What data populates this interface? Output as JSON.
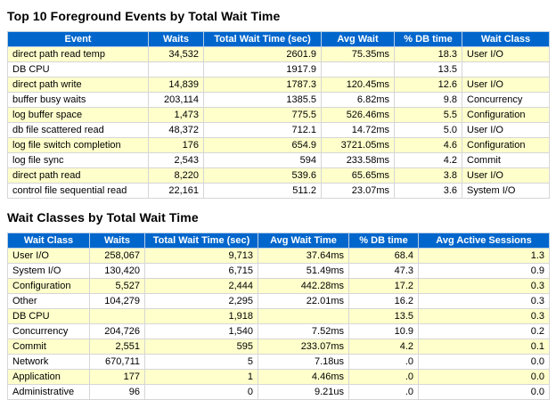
{
  "colors": {
    "header_bg": "#0066cc",
    "header_text": "#ffffff",
    "row_alt": "#ffffcc",
    "row_plain": "#ffffff"
  },
  "sections": [
    {
      "title": "Top 10 Foreground Events by Total Wait Time",
      "headers": [
        "Event",
        "Waits",
        "Total Wait Time (sec)",
        "Avg Wait",
        "% DB time",
        "Wait Class"
      ],
      "rows": [
        [
          "direct path read temp",
          "34,532",
          "2601.9",
          "75.35ms",
          "18.3",
          "User I/O"
        ],
        [
          "DB CPU",
          "",
          "1917.9",
          "",
          "13.5",
          ""
        ],
        [
          "direct path write",
          "14,839",
          "1787.3",
          "120.45ms",
          "12.6",
          "User I/O"
        ],
        [
          "buffer busy waits",
          "203,114",
          "1385.5",
          "6.82ms",
          "9.8",
          "Concurrency"
        ],
        [
          "log buffer space",
          "1,473",
          "775.5",
          "526.46ms",
          "5.5",
          "Configuration"
        ],
        [
          "db file scattered read",
          "48,372",
          "712.1",
          "14.72ms",
          "5.0",
          "User I/O"
        ],
        [
          "log file switch completion",
          "176",
          "654.9",
          "3721.05ms",
          "4.6",
          "Configuration"
        ],
        [
          "log file sync",
          "2,543",
          "594",
          "233.58ms",
          "4.2",
          "Commit"
        ],
        [
          "direct path read",
          "8,220",
          "539.6",
          "65.65ms",
          "3.8",
          "User I/O"
        ],
        [
          "control file sequential read",
          "22,161",
          "511.2",
          "23.07ms",
          "3.6",
          "System I/O"
        ]
      ]
    },
    {
      "title": "Wait Classes by Total Wait Time",
      "headers": [
        "Wait Class",
        "Waits",
        "Total Wait Time (sec)",
        "Avg Wait Time",
        "% DB time",
        "Avg Active Sessions"
      ],
      "rows": [
        [
          "User I/O",
          "258,067",
          "9,713",
          "37.64ms",
          "68.4",
          "1.3"
        ],
        [
          "System I/O",
          "130,420",
          "6,715",
          "51.49ms",
          "47.3",
          "0.9"
        ],
        [
          "Configuration",
          "5,527",
          "2,444",
          "442.28ms",
          "17.2",
          "0.3"
        ],
        [
          "Other",
          "104,279",
          "2,295",
          "22.01ms",
          "16.2",
          "0.3"
        ],
        [
          "DB CPU",
          "",
          "1,918",
          "",
          "13.5",
          "0.3"
        ],
        [
          "Concurrency",
          "204,726",
          "1,540",
          "7.52ms",
          "10.9",
          "0.2"
        ],
        [
          "Commit",
          "2,551",
          "595",
          "233.07ms",
          "4.2",
          "0.1"
        ],
        [
          "Network",
          "670,711",
          "5",
          "7.18us",
          ".0",
          "0.0"
        ],
        [
          "Application",
          "177",
          "1",
          "4.46ms",
          ".0",
          "0.0"
        ],
        [
          "Administrative",
          "96",
          "0",
          "9.21us",
          ".0",
          "0.0"
        ]
      ]
    }
  ]
}
